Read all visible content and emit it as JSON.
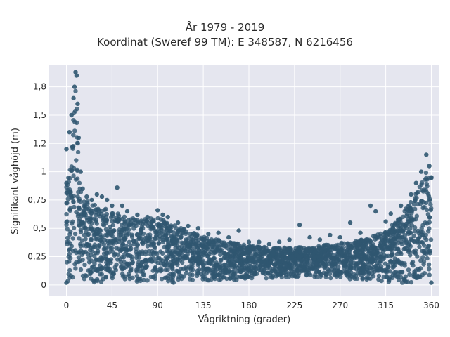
{
  "title_line1": "År 1979 - 2019",
  "title_line2": "Koordinat (Sweref 99 TM): E 348587, N 6216456",
  "chart_data": {
    "type": "scatter",
    "title": "År 1979 - 2019 / Koordinat (Sweref 99 TM): E 348587, N 6216456",
    "xlabel": "Vågriktning (grader)",
    "ylabel": "Signifikant våghöjd (m)",
    "xlim": [
      -17,
      368
    ],
    "ylim": [
      -0.1,
      1.94
    ],
    "x_ticks": [
      0,
      45,
      90,
      135,
      180,
      225,
      270,
      315,
      360
    ],
    "x_tick_labels": [
      "0",
      "45",
      "90",
      "135",
      "180",
      "225",
      "270",
      "315",
      "360"
    ],
    "y_ticks": [
      0,
      0.25,
      0.5,
      0.75,
      1,
      1.25,
      1.5,
      1.75
    ],
    "y_tick_labels": [
      "0",
      "0,25",
      "0,5",
      "0,75",
      "1",
      "1,2",
      "1,5",
      "1,8"
    ],
    "grid": true,
    "marker_color": "#2f5670",
    "background_color": "#e5e6ef",
    "series": [
      {
        "points": [
          {
            "x": 0,
            "y": 0.02
          },
          {
            "x": 0,
            "y": 0.9
          },
          {
            "x": 0,
            "y": 1.2
          },
          {
            "x": 3,
            "y": 1.35
          },
          {
            "x": 5,
            "y": 1.5
          },
          {
            "x": 7,
            "y": 1.65
          },
          {
            "x": 8,
            "y": 1.75
          },
          {
            "x": 9,
            "y": 1.88
          },
          {
            "x": 10,
            "y": 1.85
          },
          {
            "x": 11,
            "y": 1.6
          },
          {
            "x": 12,
            "y": 1.3
          },
          {
            "x": 14,
            "y": 1.0
          },
          {
            "x": 16,
            "y": 0.85
          },
          {
            "x": 20,
            "y": 0.78
          },
          {
            "x": 25,
            "y": 0.75
          },
          {
            "x": 30,
            "y": 0.8
          },
          {
            "x": 35,
            "y": 0.78
          },
          {
            "x": 40,
            "y": 0.75
          },
          {
            "x": 45,
            "y": 0.7
          },
          {
            "x": 50,
            "y": 0.86
          },
          {
            "x": 55,
            "y": 0.7
          },
          {
            "x": 60,
            "y": 0.65
          },
          {
            "x": 70,
            "y": 0.62
          },
          {
            "x": 80,
            "y": 0.6
          },
          {
            "x": 90,
            "y": 0.66
          },
          {
            "x": 95,
            "y": 0.62
          },
          {
            "x": 100,
            "y": 0.6
          },
          {
            "x": 110,
            "y": 0.55
          },
          {
            "x": 120,
            "y": 0.52
          },
          {
            "x": 130,
            "y": 0.5
          },
          {
            "x": 140,
            "y": 0.45
          },
          {
            "x": 150,
            "y": 0.46
          },
          {
            "x": 160,
            "y": 0.42
          },
          {
            "x": 170,
            "y": 0.48
          },
          {
            "x": 180,
            "y": 0.38
          },
          {
            "x": 190,
            "y": 0.38
          },
          {
            "x": 200,
            "y": 0.36
          },
          {
            "x": 210,
            "y": 0.38
          },
          {
            "x": 220,
            "y": 0.4
          },
          {
            "x": 230,
            "y": 0.53
          },
          {
            "x": 240,
            "y": 0.42
          },
          {
            "x": 250,
            "y": 0.4
          },
          {
            "x": 260,
            "y": 0.44
          },
          {
            "x": 270,
            "y": 0.42
          },
          {
            "x": 280,
            "y": 0.55
          },
          {
            "x": 290,
            "y": 0.46
          },
          {
            "x": 300,
            "y": 0.7
          },
          {
            "x": 305,
            "y": 0.65
          },
          {
            "x": 315,
            "y": 0.56
          },
          {
            "x": 320,
            "y": 0.63
          },
          {
            "x": 330,
            "y": 0.7
          },
          {
            "x": 340,
            "y": 0.8
          },
          {
            "x": 345,
            "y": 0.9
          },
          {
            "x": 350,
            "y": 1.0
          },
          {
            "x": 355,
            "y": 1.15
          },
          {
            "x": 358,
            "y": 1.05
          },
          {
            "x": 360,
            "y": 0.95
          },
          {
            "x": 360,
            "y": 0.02
          }
        ],
        "density_envelope": {
          "x": [
            0,
            3,
            6,
            8,
            10,
            12,
            15,
            20,
            30,
            45,
            60,
            75,
            90,
            100,
            120,
            140,
            160,
            180,
            200,
            220,
            240,
            260,
            280,
            300,
            315,
            330,
            340,
            350,
            355,
            360
          ],
          "y_max": [
            0.92,
            1.0,
            1.3,
            1.75,
            1.7,
            1.1,
            0.82,
            0.74,
            0.7,
            0.65,
            0.6,
            0.58,
            0.6,
            0.55,
            0.48,
            0.42,
            0.38,
            0.35,
            0.33,
            0.33,
            0.34,
            0.36,
            0.38,
            0.42,
            0.48,
            0.6,
            0.75,
            0.9,
            1.0,
            0.95
          ],
          "y_min": [
            0.02,
            0.02,
            0.02,
            0.02,
            0.02,
            0.02,
            0.02,
            0.02,
            0.02,
            0.02,
            0.02,
            0.02,
            0.02,
            0.02,
            0.02,
            0.03,
            0.04,
            0.05,
            0.06,
            0.07,
            0.07,
            0.06,
            0.05,
            0.04,
            0.03,
            0.02,
            0.02,
            0.02,
            0.02,
            0.02
          ]
        }
      }
    ]
  }
}
